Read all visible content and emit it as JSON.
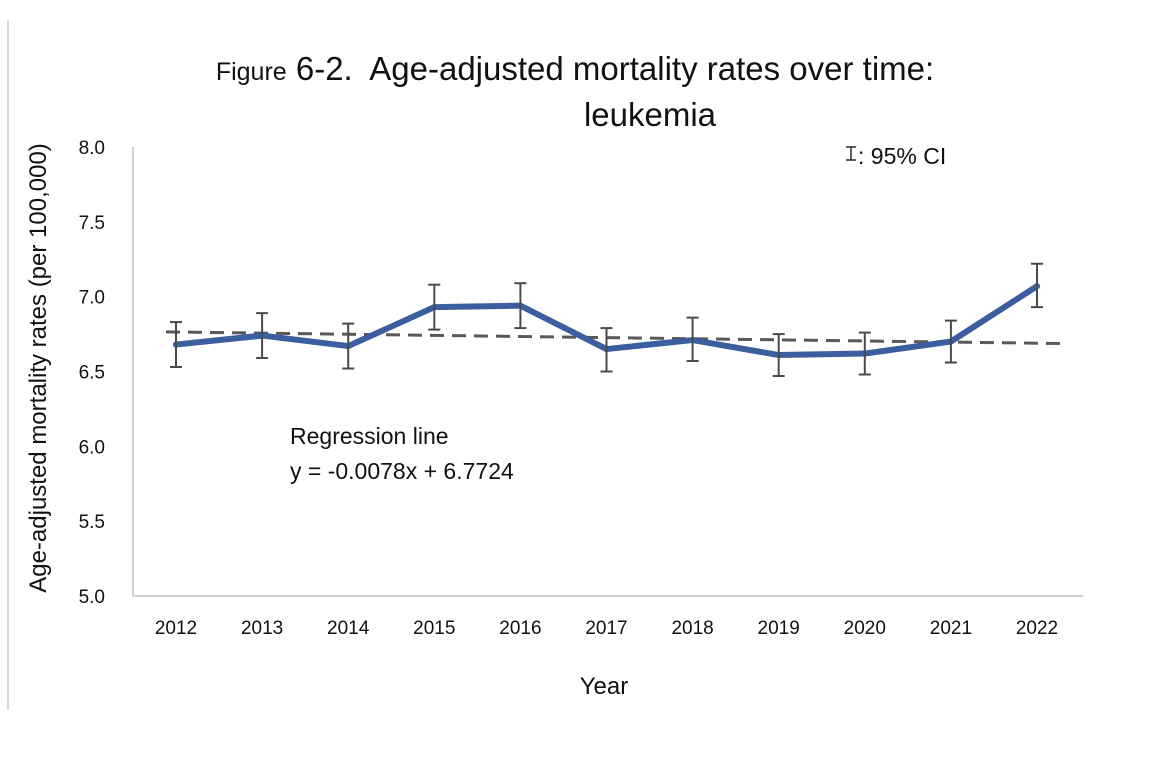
{
  "chart_data": {
    "type": "line",
    "title_prefix": "Figure",
    "title_number": "6-2.",
    "title_main": "Age-adjusted mortality rates over time:",
    "title_line2": "leukemia",
    "xlabel": "Year",
    "ylabel": "Age-adjusted mortality rates (per 100,000)",
    "categories": [
      "2012",
      "2013",
      "2014",
      "2015",
      "2016",
      "2017",
      "2018",
      "2019",
      "2020",
      "2021",
      "2022"
    ],
    "ylim": [
      5.0,
      8.0
    ],
    "yticks": [
      "5.0",
      "5.5",
      "6.0",
      "6.5",
      "7.0",
      "7.5",
      "8.0"
    ],
    "series": [
      {
        "values": [
          6.68,
          6.74,
          6.67,
          6.93,
          6.94,
          6.65,
          6.71,
          6.61,
          6.62,
          6.7,
          7.07
        ],
        "ci_lower": [
          6.53,
          6.59,
          6.52,
          6.78,
          6.79,
          6.5,
          6.57,
          6.47,
          6.48,
          6.56,
          6.93
        ],
        "ci_upper": [
          6.83,
          6.89,
          6.82,
          7.08,
          7.09,
          6.79,
          6.86,
          6.75,
          6.76,
          6.84,
          7.22
        ],
        "color": "#3a5e9e"
      }
    ],
    "regression": {
      "slope": -0.0078,
      "intercept": 6.7724,
      "style": "dashed",
      "color": "#595959",
      "label_line1": "Regression line",
      "label_line2": "y = -0.0078x + 6.7724"
    },
    "ci_legend": ": 95% CI",
    "grid": false
  }
}
